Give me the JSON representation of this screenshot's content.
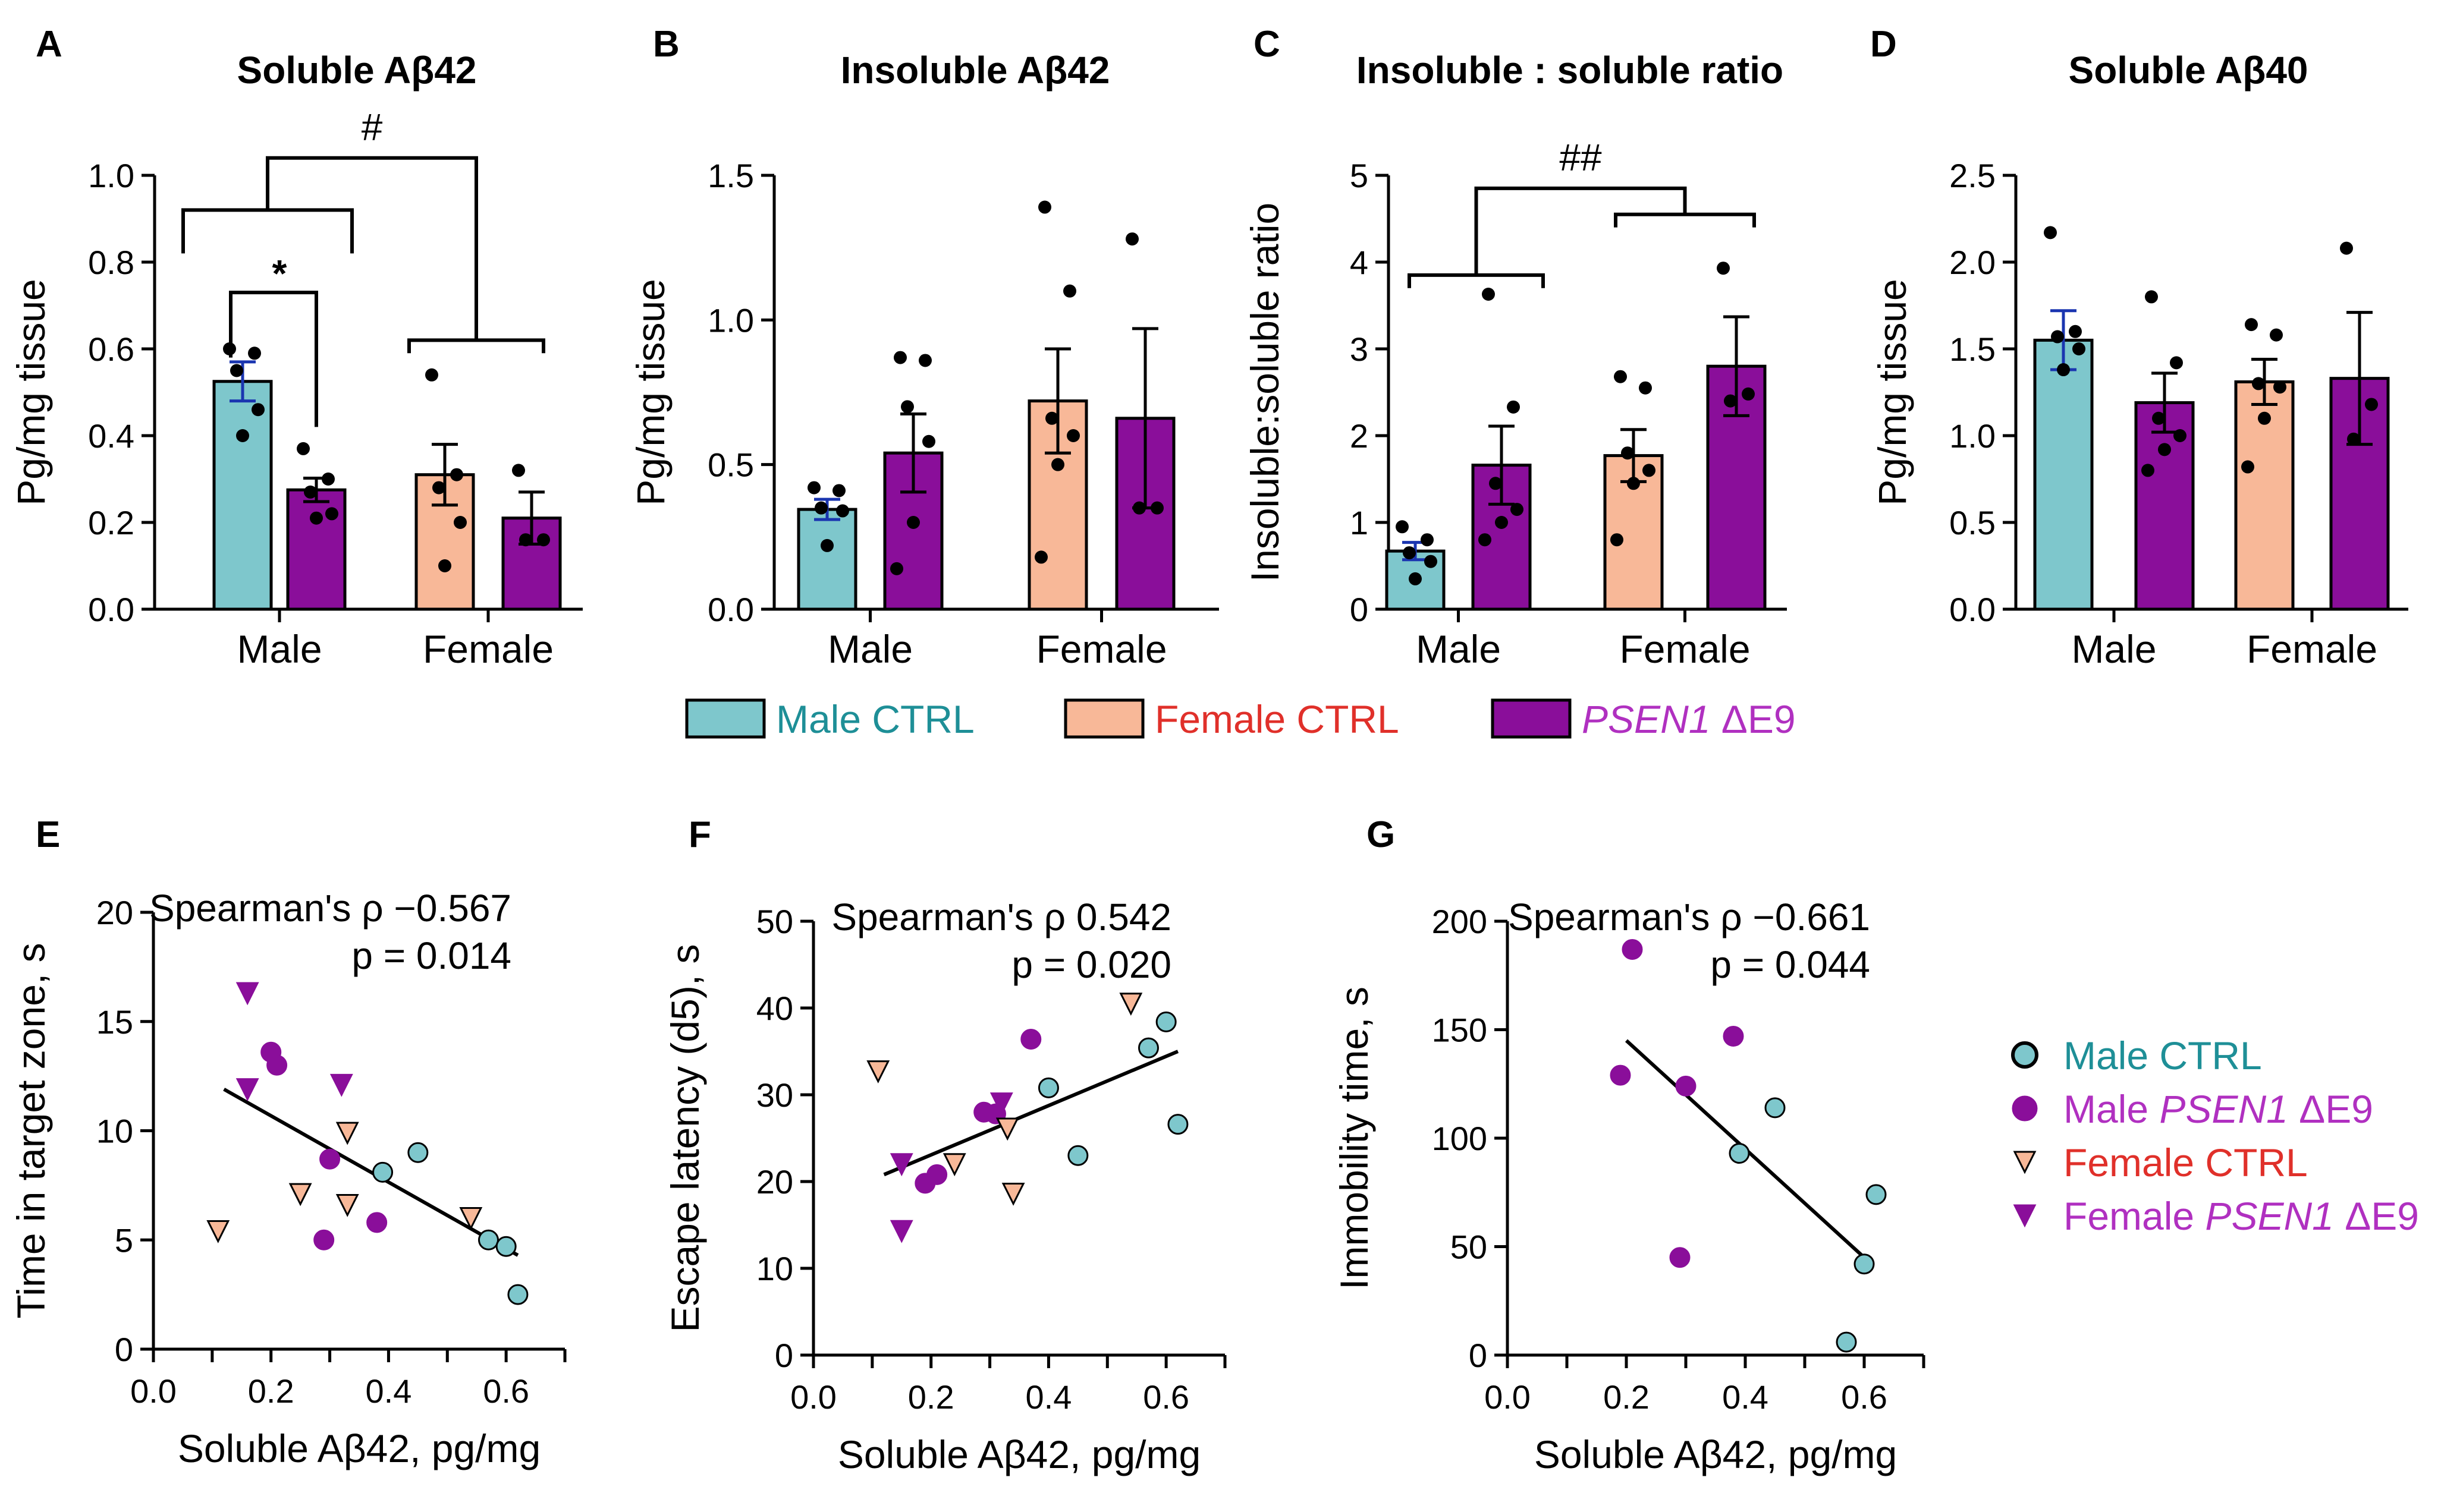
{
  "colors": {
    "male_ctrl": "#7ec7cc",
    "female_ctrl": "#f8b898",
    "psen1": "#8a0e9a",
    "male_ctrl_text": "#1e8f97",
    "female_ctrl_text": "#e0302a",
    "psen1_text": "#b030c0",
    "male_sem": "#1a35b0",
    "black": "#000000"
  },
  "bar_legend": {
    "items": [
      {
        "key": "male_ctrl",
        "label": "Male CTRL",
        "italic": "",
        "suffix": ""
      },
      {
        "key": "female_ctrl",
        "label": "Female CTRL",
        "italic": "",
        "suffix": ""
      },
      {
        "key": "psen1",
        "label": "",
        "italic": "PSEN1",
        "suffix": " ΔE9"
      }
    ]
  },
  "scatter_legend": {
    "items": [
      {
        "marker": "circle",
        "fill_key": "male_ctrl",
        "text_key": "male_ctrl_text",
        "label": "Male CTRL",
        "italic": "",
        "suffix": ""
      },
      {
        "marker": "circle",
        "fill_key": "psen1",
        "text_key": "psen1_text",
        "label": "Male ",
        "italic": "PSEN1",
        "suffix": " ΔE9"
      },
      {
        "marker": "tri",
        "fill_key": "female_ctrl",
        "text_key": "female_ctrl_text",
        "label": "Female CTRL",
        "italic": "",
        "suffix": ""
      },
      {
        "marker": "tri",
        "fill_key": "psen1",
        "text_key": "psen1_text",
        "label": "Female ",
        "italic": "PSEN1",
        "suffix": " ΔE9"
      }
    ]
  },
  "chart_data": [
    {
      "id": "A",
      "type": "bar",
      "letter": "A",
      "title": "Soluble Aβ42",
      "ylabel": "Pg/mg tissue",
      "ylim": [
        0,
        1.0
      ],
      "yticks": [
        0.0,
        0.2,
        0.4,
        0.6,
        0.8,
        1.0
      ],
      "ytick_labels": [
        "0.0",
        "0.2",
        "0.4",
        "0.6",
        "0.8",
        "1.0"
      ],
      "groups": [
        "Male",
        "Female"
      ],
      "bars": [
        {
          "group": "Male",
          "series": "male_ctrl",
          "mean": 0.525,
          "sem": 0.045,
          "points": [
            0.6,
            0.59,
            0.55,
            0.46,
            0.4
          ]
        },
        {
          "group": "Male",
          "series": "psen1",
          "mean": 0.275,
          "sem": 0.027,
          "points": [
            0.37,
            0.3,
            0.27,
            0.22,
            0.21
          ]
        },
        {
          "group": "Female",
          "series": "female_ctrl",
          "mean": 0.31,
          "sem": 0.07,
          "points": [
            0.54,
            0.31,
            0.28,
            0.2,
            0.1
          ]
        },
        {
          "group": "Female",
          "series": "psen1",
          "mean": 0.21,
          "sem": 0.06,
          "points": [
            0.32,
            0.16,
            0.16
          ]
        }
      ],
      "annotations": [
        "*",
        "#"
      ]
    },
    {
      "id": "B",
      "type": "bar",
      "letter": "B",
      "title": "Insoluble Aβ42",
      "ylabel": "Pg/mg tissue",
      "ylim": [
        0,
        1.5
      ],
      "yticks": [
        0.0,
        0.5,
        1.0,
        1.5
      ],
      "ytick_labels": [
        "0.0",
        "0.5",
        "1.0",
        "1.5"
      ],
      "groups": [
        "Male",
        "Female"
      ],
      "bars": [
        {
          "group": "Male",
          "series": "male_ctrl",
          "mean": 0.345,
          "sem": 0.035,
          "points": [
            0.42,
            0.41,
            0.35,
            0.34,
            0.22
          ]
        },
        {
          "group": "Male",
          "series": "psen1",
          "mean": 0.54,
          "sem": 0.135,
          "points": [
            0.87,
            0.86,
            0.7,
            0.58,
            0.3,
            0.14
          ]
        },
        {
          "group": "Female",
          "series": "female_ctrl",
          "mean": 0.72,
          "sem": 0.18,
          "points": [
            1.39,
            1.1,
            0.66,
            0.6,
            0.5,
            0.18
          ]
        },
        {
          "group": "Female",
          "series": "psen1",
          "mean": 0.66,
          "sem": 0.31,
          "points": [
            1.28,
            0.35,
            0.35
          ]
        }
      ],
      "annotations": []
    },
    {
      "id": "C",
      "type": "bar",
      "letter": "C",
      "title": "Insoluble : soluble ratio",
      "ylabel": "Insoluble:soluble ratio",
      "ylim": [
        0,
        5
      ],
      "yticks": [
        0,
        1,
        2,
        3,
        4,
        5
      ],
      "ytick_labels": [
        "0",
        "1",
        "2",
        "3",
        "4",
        "5"
      ],
      "groups": [
        "Male",
        "Female"
      ],
      "bars": [
        {
          "group": "Male",
          "series": "male_ctrl",
          "mean": 0.67,
          "sem": 0.1,
          "points": [
            0.95,
            0.8,
            0.65,
            0.55,
            0.35
          ]
        },
        {
          "group": "Male",
          "series": "psen1",
          "mean": 1.66,
          "sem": 0.45,
          "points": [
            3.63,
            2.33,
            1.45,
            1.15,
            1.0,
            0.8
          ]
        },
        {
          "group": "Female",
          "series": "female_ctrl",
          "mean": 1.77,
          "sem": 0.3,
          "points": [
            2.68,
            2.55,
            1.8,
            1.6,
            1.45,
            0.8
          ]
        },
        {
          "group": "Female",
          "series": "psen1",
          "mean": 2.8,
          "sem": 0.57,
          "points": [
            3.93,
            2.48,
            2.4
          ]
        }
      ],
      "annotations": [
        "##"
      ]
    },
    {
      "id": "D",
      "type": "bar",
      "letter": "D",
      "title": "Soluble Aβ40",
      "ylabel": "Pg/mg tissue",
      "ylim": [
        0,
        2.5
      ],
      "yticks": [
        0.0,
        0.5,
        1.0,
        1.5,
        2.0,
        2.5
      ],
      "ytick_labels": [
        "0.0",
        "0.5",
        "1.0",
        "1.5",
        "2.0",
        "2.5"
      ],
      "groups": [
        "Male",
        "Female"
      ],
      "bars": [
        {
          "group": "Male",
          "series": "male_ctrl",
          "mean": 1.55,
          "sem": 0.17,
          "points": [
            2.17,
            1.6,
            1.57,
            1.5,
            1.38
          ]
        },
        {
          "group": "Male",
          "series": "psen1",
          "mean": 1.19,
          "sem": 0.17,
          "points": [
            1.8,
            1.42,
            1.1,
            1.0,
            0.92,
            0.8
          ]
        },
        {
          "group": "Female",
          "series": "female_ctrl",
          "mean": 1.31,
          "sem": 0.13,
          "points": [
            1.64,
            1.58,
            1.3,
            1.28,
            1.1,
            0.82
          ]
        },
        {
          "group": "Female",
          "series": "psen1",
          "mean": 1.33,
          "sem": 0.38,
          "points": [
            2.08,
            1.18,
            0.98
          ]
        }
      ],
      "annotations": []
    },
    {
      "id": "E",
      "type": "scatter",
      "letter": "E",
      "xlabel": "Soluble Aβ42, pg/mg",
      "ylabel": "Time in target zone, s",
      "xlim": [
        0,
        0.7
      ],
      "ylim": [
        0,
        20
      ],
      "xticks": [
        0.0,
        0.2,
        0.4,
        0.6
      ],
      "xtick_labels": [
        "0.0",
        "0.2",
        "0.4",
        "0.6"
      ],
      "yticks": [
        0,
        5,
        10,
        15,
        20
      ],
      "ytick_labels": [
        "0",
        "5",
        "10",
        "15",
        "20"
      ],
      "stat_rho": "Spearman's ρ −0.567",
      "stat_p": "p = 0.014",
      "fit": [
        [
          0.12,
          11.9
        ],
        [
          0.62,
          4.3
        ]
      ],
      "series": [
        {
          "name": "Male CTRL",
          "marker": "circle",
          "fill": "male_ctrl",
          "points": [
            [
              0.39,
              8.1
            ],
            [
              0.45,
              9.0
            ],
            [
              0.57,
              5.0
            ],
            [
              0.6,
              4.7
            ],
            [
              0.62,
              2.5
            ]
          ]
        },
        {
          "name": "Male PSEN1 ΔE9",
          "marker": "circle",
          "fill": "psen1",
          "points": [
            [
              0.2,
              13.6
            ],
            [
              0.21,
              13.0
            ],
            [
              0.3,
              8.7
            ],
            [
              0.29,
              5.0
            ],
            [
              0.38,
              5.8
            ]
          ]
        },
        {
          "name": "Female CTRL",
          "marker": "tri",
          "fill": "female_ctrl",
          "points": [
            [
              0.11,
              5.4
            ],
            [
              0.25,
              7.1
            ],
            [
              0.33,
              9.9
            ],
            [
              0.33,
              6.6
            ],
            [
              0.54,
              6.0
            ]
          ]
        },
        {
          "name": "Female PSEN1 ΔE9",
          "marker": "tri",
          "fill": "psen1",
          "points": [
            [
              0.16,
              16.3
            ],
            [
              0.16,
              11.9
            ],
            [
              0.32,
              12.1
            ]
          ]
        }
      ]
    },
    {
      "id": "F",
      "type": "scatter",
      "letter": "F",
      "xlabel": "Soluble Aβ42, pg/mg",
      "ylabel": "Escape latency (d5), s",
      "xlim": [
        0,
        0.7
      ],
      "ylim": [
        0,
        50
      ],
      "xticks": [
        0.0,
        0.2,
        0.4,
        0.6
      ],
      "xtick_labels": [
        "0.0",
        "0.2",
        "0.4",
        "0.6"
      ],
      "yticks": [
        0,
        10,
        20,
        30,
        40,
        50
      ],
      "ytick_labels": [
        "0",
        "10",
        "20",
        "30",
        "40",
        "50"
      ],
      "stat_rho": "Spearman's ρ 0.542",
      "stat_p": "p = 0.020",
      "fit": [
        [
          0.12,
          20.8
        ],
        [
          0.62,
          35.0
        ]
      ],
      "series": [
        {
          "name": "Male CTRL",
          "marker": "circle",
          "fill": "male_ctrl",
          "points": [
            [
              0.4,
              30.8
            ],
            [
              0.45,
              23.0
            ],
            [
              0.57,
              35.4
            ],
            [
              0.6,
              38.4
            ],
            [
              0.62,
              26.6
            ]
          ]
        },
        {
          "name": "Male PSEN1 ΔE9",
          "marker": "circle",
          "fill": "psen1",
          "points": [
            [
              0.19,
              19.8
            ],
            [
              0.21,
              20.8
            ],
            [
              0.29,
              28.0
            ],
            [
              0.31,
              27.8
            ],
            [
              0.37,
              36.4
            ]
          ]
        },
        {
          "name": "Female CTRL",
          "marker": "tri",
          "fill": "female_ctrl",
          "points": [
            [
              0.11,
              32.7
            ],
            [
              0.24,
              22.0
            ],
            [
              0.33,
              26.1
            ],
            [
              0.34,
              18.6
            ],
            [
              0.54,
              40.5
            ]
          ]
        },
        {
          "name": "Female PSEN1 ΔE9",
          "marker": "tri",
          "fill": "psen1",
          "points": [
            [
              0.15,
              22.0
            ],
            [
              0.15,
              14.3
            ],
            [
              0.32,
              29.0
            ]
          ]
        }
      ]
    },
    {
      "id": "G",
      "type": "scatter",
      "letter": "G",
      "xlabel": "Soluble Aβ42, pg/mg",
      "ylabel": "Immobility time, s",
      "xlim": [
        0,
        0.7
      ],
      "ylim": [
        0,
        200
      ],
      "xticks": [
        0.0,
        0.2,
        0.4,
        0.6
      ],
      "xtick_labels": [
        "0.0",
        "0.2",
        "0.4",
        "0.6"
      ],
      "yticks": [
        0,
        50,
        100,
        150,
        200
      ],
      "ytick_labels": [
        "0",
        "50",
        "100",
        "150",
        "200"
      ],
      "stat_rho": "Spearman's ρ −0.661",
      "stat_p": "p = 0.044",
      "fit": [
        [
          0.2,
          145
        ],
        [
          0.6,
          45
        ]
      ],
      "series": [
        {
          "name": "Male CTRL",
          "marker": "circle",
          "fill": "male_ctrl",
          "points": [
            [
              0.39,
              93
            ],
            [
              0.45,
              114
            ],
            [
              0.57,
              6
            ],
            [
              0.6,
              42
            ],
            [
              0.62,
              74
            ]
          ]
        },
        {
          "name": "Male PSEN1 ΔE9",
          "marker": "circle",
          "fill": "psen1",
          "points": [
            [
              0.19,
              129
            ],
            [
              0.21,
              187
            ],
            [
              0.29,
              45
            ],
            [
              0.3,
              124
            ],
            [
              0.38,
              147
            ]
          ]
        }
      ]
    }
  ]
}
